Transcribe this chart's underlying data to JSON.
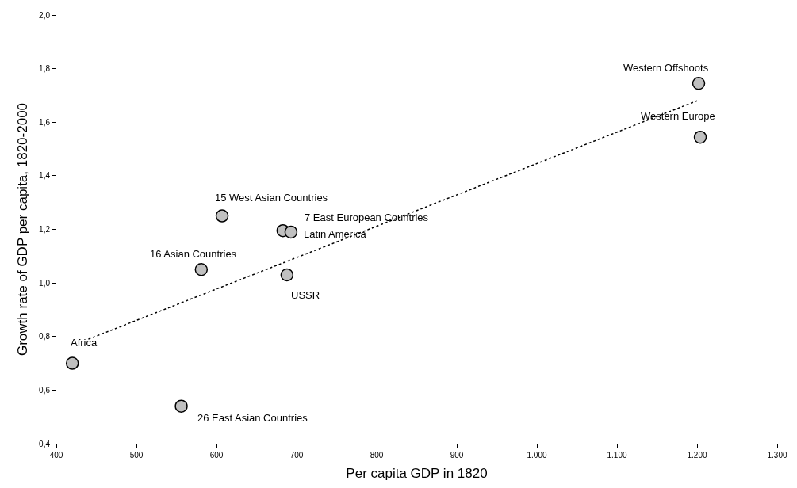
{
  "chart_data": {
    "type": "scatter",
    "xlabel": "Per capita GDP in 1820",
    "ylabel": "Growth rate of GDP per capita, 1820-2000",
    "xlim": [
      400,
      1300
    ],
    "ylim": [
      0.4,
      2.0
    ],
    "xticks": [
      400,
      500,
      600,
      700,
      800,
      900,
      {
        "value": 1000,
        "label": "1.000"
      },
      {
        "value": 1100,
        "label": "1.100"
      },
      {
        "value": 1200,
        "label": "1.200"
      },
      {
        "value": 1300,
        "label": "1.300"
      }
    ],
    "yticks": [
      {
        "value": 0.4,
        "label": "0,4"
      },
      {
        "value": 0.6,
        "label": "0,6"
      },
      {
        "value": 0.8,
        "label": "0,8"
      },
      {
        "value": 1.0,
        "label": "1,0"
      },
      {
        "value": 1.2,
        "label": "1,2"
      },
      {
        "value": 1.4,
        "label": "1,4"
      },
      {
        "value": 1.6,
        "label": "1,6"
      },
      {
        "value": 1.8,
        "label": "1,8"
      },
      {
        "value": 2.0,
        "label": "2,0"
      }
    ],
    "grid": false,
    "marker": "circle",
    "series": [
      {
        "color": "#c0c0c0",
        "x": [
          1202,
          1204,
          607,
          683,
          693,
          581,
          688,
          420,
          556
        ],
        "values": [
          1.745,
          1.544,
          1.25,
          1.195,
          1.19,
          1.05,
          1.03,
          0.7,
          0.54
        ]
      },
      {
        "type": "line",
        "color": "#000000",
        "line_style": "dotted",
        "marker": "none",
        "x": [
          440,
          1200
        ],
        "values": [
          0.79,
          1.68
        ]
      }
    ],
    "annotations": [
      {
        "text": "Western Offshoots",
        "x": 1202,
        "y": 1.745
      },
      {
        "text": "Western Europe",
        "x": 1204,
        "y": 1.544
      },
      {
        "text": "15 West Asian Countries",
        "x": 607,
        "y": 1.25
      },
      {
        "text": "7 East European Countries",
        "x": 683,
        "y": 1.195
      },
      {
        "text": "Latin America",
        "x": 693,
        "y": 1.19
      },
      {
        "text": "16 Asian Countries",
        "x": 581,
        "y": 1.05
      },
      {
        "text": "USSR",
        "x": 688,
        "y": 1.03
      },
      {
        "text": "Africa",
        "x": 420,
        "y": 0.7
      },
      {
        "text": "26 East Asian Countries",
        "x": 556,
        "y": 0.54
      }
    ]
  }
}
